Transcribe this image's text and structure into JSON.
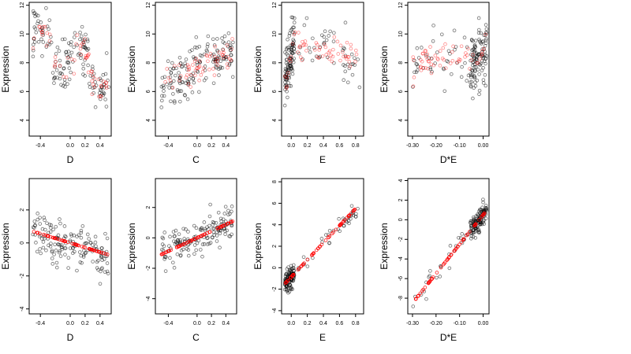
{
  "colors": {
    "observed": "#000000",
    "fitted": "#ff0000",
    "background": "#ffffff"
  },
  "chart_data": [
    {
      "type": "scatter",
      "panel": "top-1",
      "xlabel": "D",
      "ylabel": "Expression",
      "xlim": [
        -0.55,
        0.55
      ],
      "ylim": [
        2.9,
        12.2
      ],
      "xticks": [
        -0.4,
        0.0,
        0.2,
        0.4
      ],
      "xtick_labels": [
        "-0.4",
        "0.0",
        "0.2",
        "0.4"
      ],
      "yticks": [
        4,
        6,
        8,
        10,
        12
      ],
      "ytick_labels": [
        "4",
        "6",
        "8",
        "10",
        "12"
      ],
      "points": {
        "x_range": [
          -0.5,
          0.52
        ],
        "y_range": [
          3.3,
          11.8
        ]
      },
      "fitted": {
        "x_range": [
          -0.5,
          0.52
        ],
        "y_range": [
          5.0,
          10.5
        ]
      }
    },
    {
      "type": "scatter",
      "panel": "top-2",
      "xlabel": "C",
      "ylabel": "Expression",
      "xlim": [
        -0.58,
        0.55
      ],
      "ylim": [
        2.9,
        12.2
      ],
      "xticks": [
        -0.4,
        0.0,
        0.2,
        0.4
      ],
      "xtick_labels": [
        "-0.4",
        "0.0",
        "0.2",
        "0.4"
      ],
      "yticks": [
        4,
        6,
        8,
        10,
        12
      ],
      "ytick_labels": [
        "4",
        "6",
        "8",
        "10",
        "12"
      ],
      "points": {
        "x_range": [
          -0.5,
          0.5
        ],
        "y_range": [
          3.3,
          11.8
        ]
      },
      "fitted": {
        "x_range": [
          -0.5,
          0.5
        ],
        "y_range": [
          5.2,
          10.2
        ]
      }
    },
    {
      "type": "scatter",
      "panel": "top-3",
      "xlabel": "E",
      "ylabel": "Expression",
      "xlim": [
        -0.12,
        0.9
      ],
      "ylim": [
        2.9,
        12.2
      ],
      "xticks": [
        0.0,
        0.2,
        0.4,
        0.6,
        0.8
      ],
      "xtick_labels": [
        "0.0",
        "0.2",
        "0.4",
        "0.6",
        "0.8"
      ],
      "yticks": [
        4,
        6,
        8,
        10,
        12
      ],
      "ytick_labels": [
        "4",
        "6",
        "8",
        "10",
        "12"
      ],
      "points": {
        "x_range": [
          -0.08,
          0.85
        ],
        "y_range": [
          3.3,
          11.8
        ]
      },
      "fitted": {
        "x_range": [
          -0.08,
          0.85
        ],
        "y_range": [
          5.5,
          10.4
        ]
      }
    },
    {
      "type": "scatter",
      "panel": "top-4",
      "xlabel": "D*E",
      "ylabel": "Expression",
      "xlim": [
        -0.32,
        0.025
      ],
      "ylim": [
        2.9,
        12.2
      ],
      "xticks": [
        -0.3,
        -0.2,
        -0.1,
        0.0
      ],
      "xtick_labels": [
        "-0.30",
        "-0.20",
        "-0.10",
        "0.00"
      ],
      "yticks": [
        4,
        6,
        8,
        10,
        12
      ],
      "ytick_labels": [
        "4",
        "6",
        "8",
        "10",
        "12"
      ],
      "points": {
        "x_range": [
          -0.3,
          0.015
        ],
        "y_range": [
          3.3,
          11.8
        ]
      },
      "fitted": {
        "x_range": [
          -0.3,
          0.015
        ],
        "y_range": [
          5.2,
          10.5
        ]
      }
    },
    {
      "type": "scatter",
      "panel": "bottom-1",
      "xlabel": "D",
      "ylabel": "Expression",
      "xlim": [
        -0.55,
        0.55
      ],
      "ylim": [
        -4.3,
        3.9
      ],
      "xticks": [
        -0.4,
        0.0,
        0.2,
        0.4
      ],
      "xtick_labels": [
        "-0.4",
        "0.0",
        "0.2",
        "0.4"
      ],
      "yticks": [
        -4,
        -2,
        0,
        2
      ],
      "ytick_labels": [
        "-4",
        "-2",
        "0",
        "2"
      ],
      "points": {
        "x_range": [
          -0.5,
          0.52
        ],
        "y_range": [
          -4.0,
          3.6
        ]
      },
      "fitted": {
        "x": [
          -0.5,
          0.5
        ],
        "y": [
          0.7,
          -0.7
        ]
      }
    },
    {
      "type": "scatter",
      "panel": "bottom-2",
      "xlabel": "C",
      "ylabel": "Expression",
      "xlim": [
        -0.58,
        0.55
      ],
      "ylim": [
        -5.0,
        3.9
      ],
      "xticks": [
        -0.4,
        0.0,
        0.2,
        0.4
      ],
      "xtick_labels": [
        "-0.4",
        "0.0",
        "0.2",
        "0.4"
      ],
      "yticks": [
        -4,
        -2,
        0,
        2
      ],
      "ytick_labels": [
        "-4",
        "-2",
        "0",
        "2"
      ],
      "points": {
        "x_range": [
          -0.5,
          0.5
        ],
        "y_range": [
          -4.6,
          3.6
        ]
      },
      "fitted": {
        "x": [
          -0.5,
          0.5
        ],
        "y": [
          -1.1,
          1.1
        ]
      }
    },
    {
      "type": "scatter",
      "panel": "bottom-3",
      "xlabel": "E",
      "ylabel": "Expression",
      "xlim": [
        -0.12,
        0.9
      ],
      "ylim": [
        -4.3,
        8.3
      ],
      "xticks": [
        0.0,
        0.2,
        0.4,
        0.6,
        0.8
      ],
      "xtick_labels": [
        "0.0",
        "0.2",
        "0.4",
        "0.6",
        "0.8"
      ],
      "yticks": [
        -4,
        -2,
        0,
        2,
        4,
        6,
        8
      ],
      "ytick_labels": [
        "-4",
        "-2",
        "0",
        "2",
        "4",
        "6",
        "8"
      ],
      "points": {
        "x_range": [
          -0.08,
          0.85
        ],
        "y_range": [
          -4.0,
          7.8
        ]
      },
      "fitted": {
        "x": [
          -0.08,
          0.85
        ],
        "y": [
          -1.5,
          5.9
        ]
      }
    },
    {
      "type": "scatter",
      "panel": "bottom-4",
      "xlabel": "D*E",
      "ylabel": "Expression",
      "xlim": [
        -0.32,
        0.025
      ],
      "ylim": [
        -9.6,
        4.2
      ],
      "xticks": [
        -0.3,
        -0.2,
        -0.1,
        0.0
      ],
      "xtick_labels": [
        "-0.30",
        "-0.20",
        "-0.10",
        "0.00"
      ],
      "yticks": [
        -8,
        -6,
        -4,
        -2,
        0,
        2,
        4
      ],
      "ytick_labels": [
        "-8",
        "-6",
        "-4",
        "-2",
        "0",
        "2",
        "4"
      ],
      "points": {
        "x_range": [
          -0.3,
          0.015
        ],
        "y_range": [
          -9.2,
          3.8
        ]
      },
      "fitted": {
        "x": [
          -0.3,
          0.01
        ],
        "y": [
          -8.5,
          0.8
        ]
      }
    }
  ]
}
